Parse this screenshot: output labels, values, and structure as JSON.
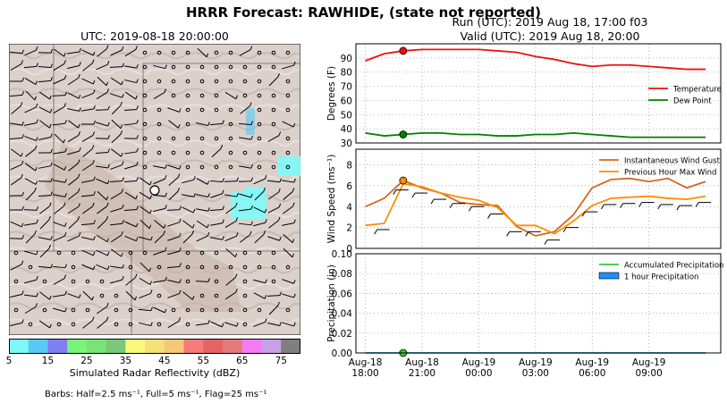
{
  "header": {
    "title": "HRRR Forecast: RAWHIDE, (state not reported)",
    "run": "Run (UTC): 2019 Aug 18, 17:00 f03",
    "valid": "Valid (UTC): 2019 Aug 18, 20:00"
  },
  "map": {
    "title": "UTC: 2019-08-18 20:00:00",
    "colorbar_label": "Simulated Radar Reflectivity (dBZ)",
    "colorbar_ticks": [
      "5",
      "15",
      "25",
      "35",
      "45",
      "55",
      "65",
      "75"
    ],
    "colorbar_colors": [
      "#7ef9f9",
      "#5ac8f5",
      "#7f7ff5",
      "#78f578",
      "#78e478",
      "#7ac878",
      "#f9f97a",
      "#f5df78",
      "#f5c878",
      "#f57a7a",
      "#e46464",
      "#e47a7a",
      "#f57af5",
      "#c8a0e4",
      "#7f7f7f"
    ],
    "barbs_note": "Barbs: Half=2.5 ms⁻¹, Full=5 ms⁻¹, Flag=25 ms⁻¹"
  },
  "chart_data": [
    {
      "type": "line",
      "ylabel": "Degrees (F)",
      "ylim": [
        30,
        100
      ],
      "yticks": [
        30,
        40,
        50,
        60,
        70,
        80,
        90
      ],
      "grid": true,
      "legend": "right",
      "x_hours": [
        -2,
        -1,
        0,
        1,
        2,
        3,
        4,
        5,
        6,
        7,
        8,
        9,
        10,
        11,
        12,
        13,
        14,
        15,
        16
      ],
      "series": [
        {
          "name": "Temperature",
          "color": "#ee1111",
          "values": [
            88,
            93,
            95,
            96,
            96,
            96,
            96,
            95,
            94,
            91,
            89,
            86,
            84,
            85,
            85,
            84,
            83,
            82,
            82
          ]
        },
        {
          "name": "Dew Point",
          "color": "#008000",
          "values": [
            37,
            35,
            36,
            37,
            37,
            36,
            36,
            35,
            35,
            36,
            36,
            37,
            36,
            35,
            34,
            34,
            34,
            34,
            34
          ]
        }
      ],
      "marker_hour": 0
    },
    {
      "type": "line",
      "ylabel": "Wind Speed (ms⁻¹)",
      "ylim": [
        0,
        9.5
      ],
      "yticks": [
        0,
        2,
        4,
        6,
        8
      ],
      "grid": true,
      "legend": "top-right",
      "x_hours": [
        -2,
        -1,
        0,
        1,
        2,
        3,
        4,
        5,
        6,
        7,
        8,
        9,
        10,
        11,
        12,
        13,
        14,
        15,
        16
      ],
      "series": [
        {
          "name": "Instantaneous Wind Gust",
          "color": "#d2691e",
          "values": [
            4.0,
            4.8,
            6.5,
            5.8,
            5.3,
            4.4,
            4.2,
            4.1,
            2.1,
            1.2,
            1.6,
            3.2,
            5.8,
            6.6,
            6.7,
            6.4,
            6.7,
            5.8,
            6.4
          ]
        },
        {
          "name": "Previous Hour Max Wind",
          "color": "#ff8c00",
          "values": [
            2.2,
            2.4,
            6.2,
            5.9,
            5.3,
            4.9,
            4.6,
            3.9,
            2.2,
            2.2,
            1.4,
            2.6,
            4.1,
            4.8,
            4.9,
            5.0,
            4.8,
            4.7,
            5.0
          ]
        }
      ],
      "marker_hour": 0
    },
    {
      "type": "bar",
      "ylabel": "Precipitation (in)",
      "ylim": [
        0,
        0.1
      ],
      "yticks": [
        "0.00",
        "0.02",
        "0.04",
        "0.06",
        "0.08",
        "0.10"
      ],
      "grid": true,
      "legend": "top-right",
      "x_hours": [
        -2,
        -1,
        0,
        1,
        2,
        3,
        4,
        5,
        6,
        7,
        8,
        9,
        10,
        11,
        12,
        13,
        14,
        15,
        16
      ],
      "series": [
        {
          "name": "Accumulated Precipitation",
          "color": "#32cd32",
          "values": [
            0,
            0,
            0,
            0,
            0,
            0,
            0,
            0,
            0,
            0,
            0,
            0,
            0,
            0,
            0,
            0,
            0,
            0,
            0
          ]
        },
        {
          "name": "1 hour Precipitation",
          "color": "#1e90ff",
          "values": [
            0,
            0,
            0,
            0,
            0,
            0,
            0,
            0,
            0,
            0,
            0,
            0,
            0,
            0,
            0,
            0,
            0,
            0,
            0
          ]
        }
      ],
      "marker_hour": 0,
      "x_tick_labels": [
        {
          "line1": "Aug-18",
          "line2": "18:00",
          "hour": -2
        },
        {
          "line1": "Aug-18",
          "line2": "21:00",
          "hour": 1
        },
        {
          "line1": "Aug-19",
          "line2": "00:00",
          "hour": 4
        },
        {
          "line1": "Aug-19",
          "line2": "03:00",
          "hour": 7
        },
        {
          "line1": "Aug-19",
          "line2": "06:00",
          "hour": 10
        },
        {
          "line1": "Aug-19",
          "line2": "09:00",
          "hour": 13
        }
      ]
    }
  ]
}
